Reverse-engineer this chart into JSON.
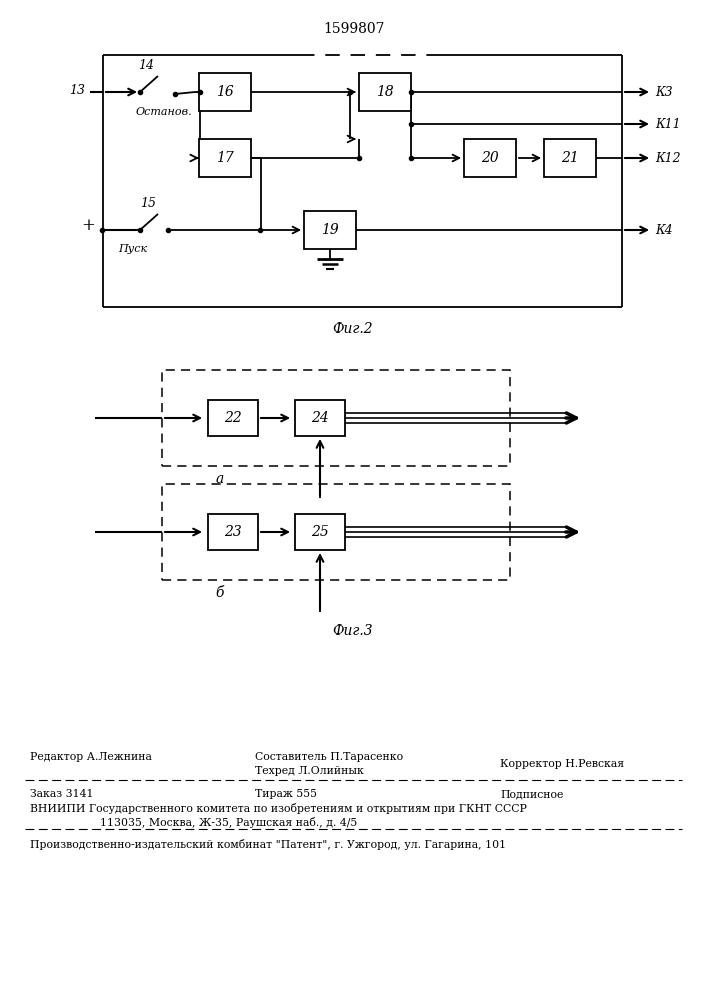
{
  "title": "1599807",
  "title_fontsize": 10,
  "background_color": "#ffffff",
  "fig2_label": "Фиг.2",
  "fig3_label": "Фиг.3",
  "fig3a_label": "а",
  "fig3b_label": "б"
}
